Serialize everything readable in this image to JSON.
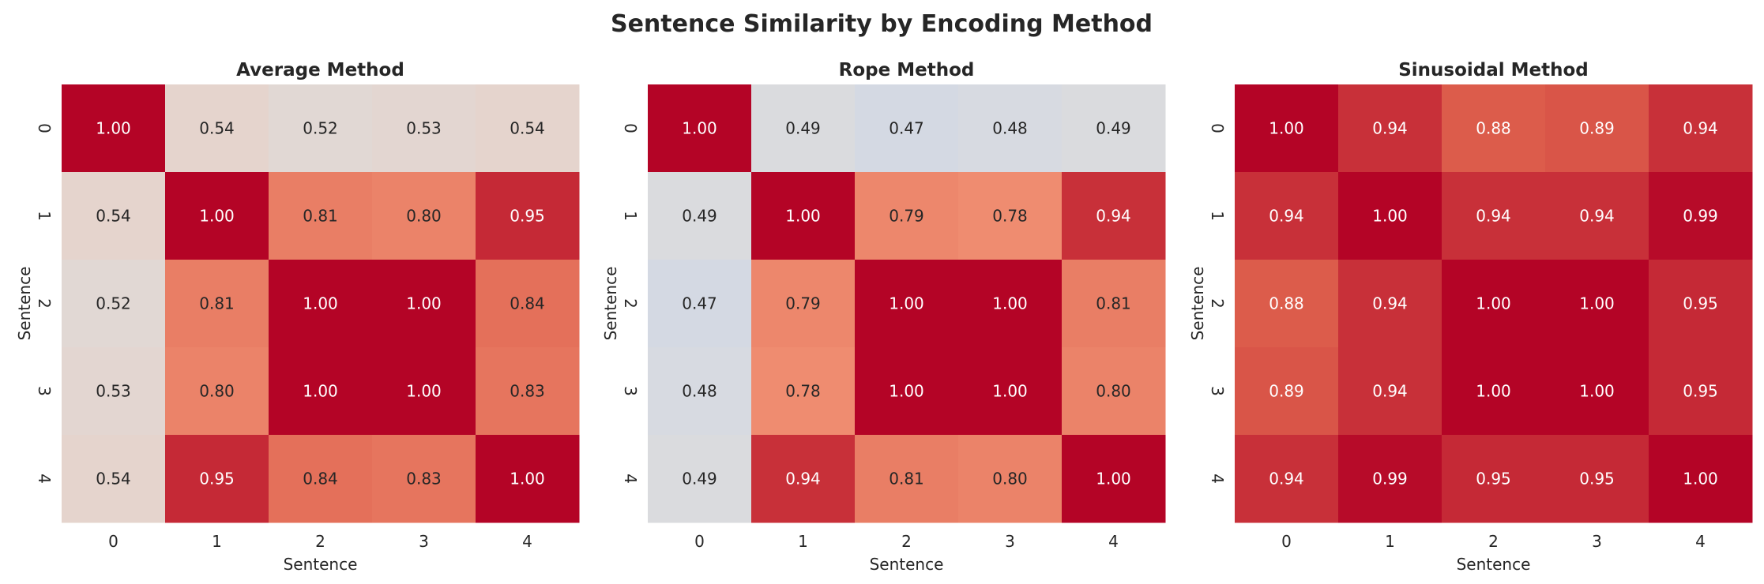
{
  "chart_data": {
    "type": "heatmap",
    "title": "Sentence Similarity by Encoding Method",
    "colormap": "coolwarm",
    "color_range": [
      0,
      1
    ],
    "colorbar": false,
    "annotation_format": "0.00",
    "plots": [
      {
        "title": "Average Method",
        "xlabel": "Sentence",
        "ylabel": "Sentence",
        "x_ticks": [
          "0",
          "1",
          "2",
          "3",
          "4"
        ],
        "y_ticks": [
          "0",
          "1",
          "2",
          "3",
          "4"
        ],
        "values": [
          [
            1.0,
            0.54,
            0.52,
            0.53,
            0.54
          ],
          [
            0.54,
            1.0,
            0.81,
            0.8,
            0.95
          ],
          [
            0.52,
            0.81,
            1.0,
            1.0,
            0.84
          ],
          [
            0.53,
            0.8,
            1.0,
            1.0,
            0.83
          ],
          [
            0.54,
            0.95,
            0.84,
            0.83,
            1.0
          ]
        ]
      },
      {
        "title": "Rope Method",
        "xlabel": "Sentence",
        "ylabel": "Sentence",
        "x_ticks": [
          "0",
          "1",
          "2",
          "3",
          "4"
        ],
        "y_ticks": [
          "0",
          "1",
          "2",
          "3",
          "4"
        ],
        "values": [
          [
            1.0,
            0.49,
            0.47,
            0.48,
            0.49
          ],
          [
            0.49,
            1.0,
            0.79,
            0.78,
            0.94
          ],
          [
            0.47,
            0.79,
            1.0,
            1.0,
            0.81
          ],
          [
            0.48,
            0.78,
            1.0,
            1.0,
            0.8
          ],
          [
            0.49,
            0.94,
            0.81,
            0.8,
            1.0
          ]
        ]
      },
      {
        "title": "Sinusoidal Method",
        "xlabel": "Sentence",
        "ylabel": "Sentence",
        "x_ticks": [
          "0",
          "1",
          "2",
          "3",
          "4"
        ],
        "y_ticks": [
          "0",
          "1",
          "2",
          "3",
          "4"
        ],
        "values": [
          [
            1.0,
            0.94,
            0.88,
            0.89,
            0.94
          ],
          [
            0.94,
            1.0,
            0.94,
            0.94,
            0.99
          ],
          [
            0.88,
            0.94,
            1.0,
            1.0,
            0.95
          ],
          [
            0.89,
            0.94,
            1.0,
            1.0,
            0.95
          ],
          [
            0.94,
            0.99,
            0.95,
            0.95,
            1.0
          ]
        ]
      }
    ]
  }
}
